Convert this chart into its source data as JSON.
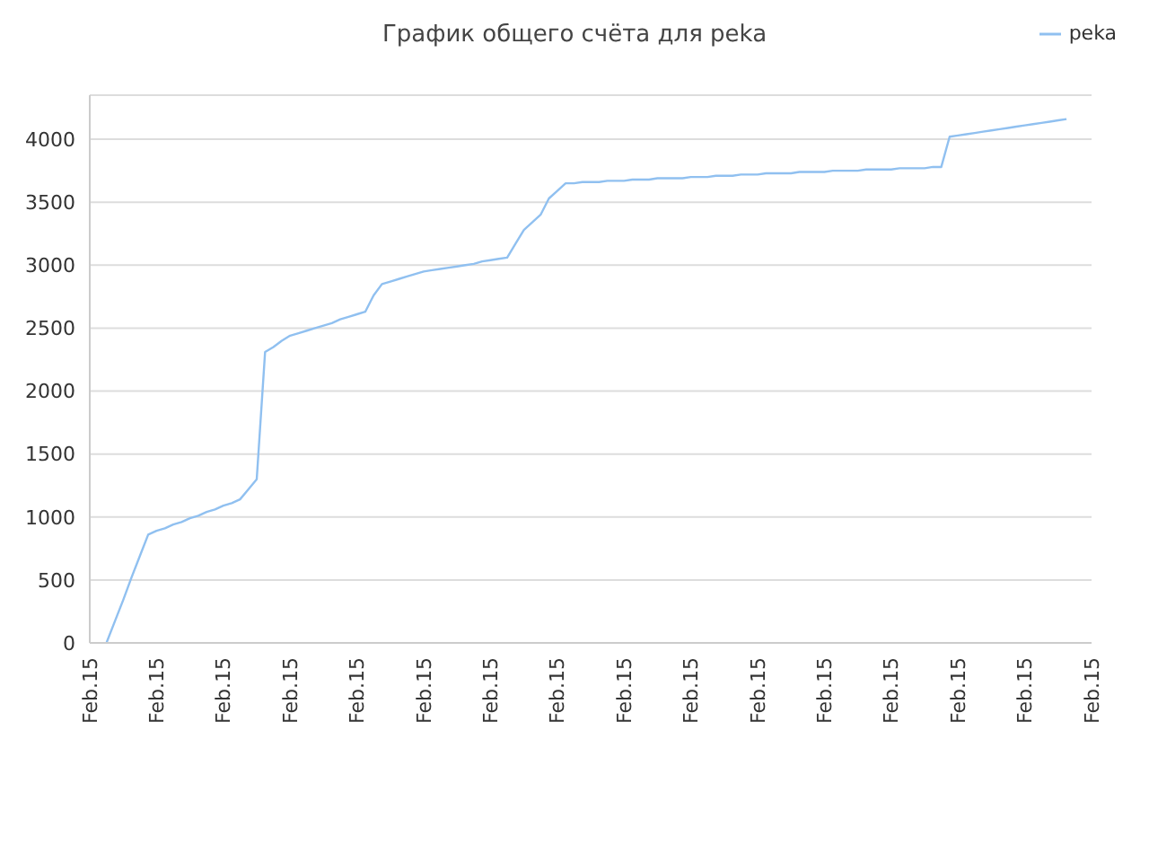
{
  "chart_data": {
    "type": "line",
    "title": "График общего счёта для peka",
    "categories": [
      "Feb.15",
      null,
      null,
      null,
      null,
      null,
      null,
      null,
      "Feb.15",
      null,
      null,
      null,
      null,
      null,
      null,
      null,
      "Feb.15",
      null,
      null,
      null,
      null,
      null,
      null,
      null,
      "Feb.15",
      null,
      null,
      null,
      null,
      null,
      null,
      null,
      "Feb.15",
      null,
      null,
      null,
      null,
      null,
      null,
      null,
      "Feb.15",
      null,
      null,
      null,
      null,
      null,
      null,
      null,
      "Feb.15",
      null,
      null,
      null,
      null,
      null,
      null,
      null,
      "Feb.15",
      null,
      null,
      null,
      null,
      null,
      null,
      null,
      "Feb.15",
      null,
      null,
      null,
      null,
      null,
      null,
      null,
      "Feb.15",
      null,
      null,
      null,
      null,
      null,
      null,
      null,
      "Feb.15",
      null,
      null,
      null,
      null,
      null,
      null,
      null,
      "Feb.15",
      null,
      null,
      null,
      null,
      null,
      null,
      null,
      "Feb.15",
      null,
      null,
      null,
      null,
      null,
      null,
      null,
      "Feb.15",
      null,
      null,
      null,
      null,
      null,
      null,
      null,
      "Feb.15",
      null,
      null,
      null,
      null,
      null,
      null,
      null,
      "Feb.15"
    ],
    "series": [
      {
        "name": "peka",
        "color": "#90c0f0",
        "values": [
          null,
          null,
          0,
          170,
          340,
          520,
          690,
          860,
          890,
          910,
          940,
          960,
          990,
          1010,
          1040,
          1060,
          1090,
          1110,
          1140,
          1220,
          1300,
          2310,
          2350,
          2400,
          2440,
          2460,
          2480,
          2500,
          2520,
          2540,
          2570,
          2590,
          2610,
          2630,
          2760,
          2850,
          2870,
          2890,
          2910,
          2930,
          2950,
          2960,
          2970,
          2980,
          2990,
          3000,
          3010,
          3030,
          3040,
          3050,
          3060,
          3170,
          3280,
          3340,
          3400,
          3530,
          3590,
          3650,
          3650,
          3660,
          3660,
          3660,
          3670,
          3670,
          3670,
          3680,
          3680,
          3680,
          3690,
          3690,
          3690,
          3690,
          3700,
          3700,
          3700,
          3710,
          3710,
          3710,
          3720,
          3720,
          3720,
          3730,
          3730,
          3730,
          3730,
          3740,
          3740,
          3740,
          3740,
          3750,
          3750,
          3750,
          3750,
          3760,
          3760,
          3760,
          3760,
          3770,
          3770,
          3770,
          3770,
          3780,
          3780,
          4020,
          4030,
          4040,
          4050,
          4060,
          4070,
          4080,
          4090,
          4100,
          4110,
          4120,
          4130,
          4140,
          4150,
          4160,
          null,
          null,
          null
        ]
      }
    ],
    "ylim": [
      0,
      4350
    ],
    "yticks": [
      0,
      500,
      1000,
      1500,
      2000,
      2500,
      3000,
      3500,
      4000
    ],
    "grid": "y",
    "legend": "top right",
    "marker": "none",
    "line_style": "solid"
  }
}
